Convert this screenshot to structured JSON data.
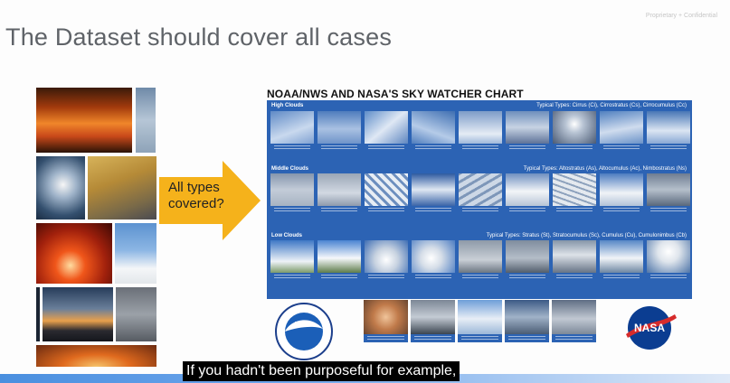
{
  "slide": {
    "confidential_label": "Proprietary + Confidential",
    "title": "The Dataset should cover all cases"
  },
  "callout": {
    "line1": "All types",
    "line2": "covered?",
    "arrow_color": "#f5b21b"
  },
  "chart": {
    "title": "NOAA/NWS AND NASA'S SKY WATCHER CHART",
    "bands": [
      {
        "name": "High Clouds",
        "types": "Typical Types: Cirrus (Ci), Cirrostratus (Cs), Cirrocumulus (Cc)"
      },
      {
        "name": "Middle Clouds",
        "types": "Typical Types: Altostratus (As), Altocumulus (Ac), Nimbostratus (Ns)"
      },
      {
        "name": "Low Clouds",
        "types": "Typical Types: Stratus (St), Stratocumulus (Sc), Cumulus (Cu), Cumulonimbus (Cb)"
      }
    ],
    "accent": "#2c63b4"
  },
  "logos": {
    "left_text": "NOAA",
    "right_text": "NASA"
  },
  "subtitle": {
    "text": "If you hadn't been purposeful for example,"
  }
}
